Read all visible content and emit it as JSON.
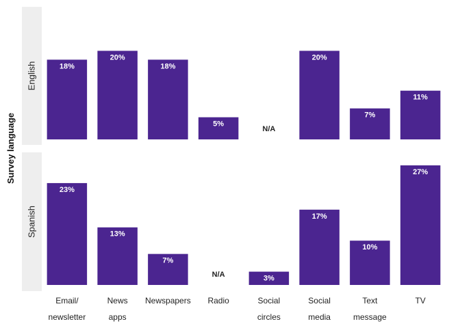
{
  "chart_data": {
    "type": "bar",
    "group_label": "Survey language",
    "categories": [
      [
        "Email/",
        "newsletter"
      ],
      [
        "News",
        "apps"
      ],
      [
        "Newspapers"
      ],
      [
        "Radio"
      ],
      [
        "Social",
        "circles"
      ],
      [
        "Social",
        "media"
      ],
      [
        "Text",
        "message"
      ],
      [
        "TV"
      ]
    ],
    "unit": "%",
    "na_label": "N/A",
    "bar_color": "#4b2590",
    "facet_bg_color": "#eeeeee",
    "ylim": [
      0,
      27
    ],
    "facets": [
      {
        "name": "English",
        "values": [
          18,
          20,
          18,
          5,
          null,
          20,
          7,
          11
        ]
      },
      {
        "name": "Spanish",
        "values": [
          23,
          13,
          7,
          null,
          3,
          17,
          10,
          27
        ]
      }
    ]
  }
}
